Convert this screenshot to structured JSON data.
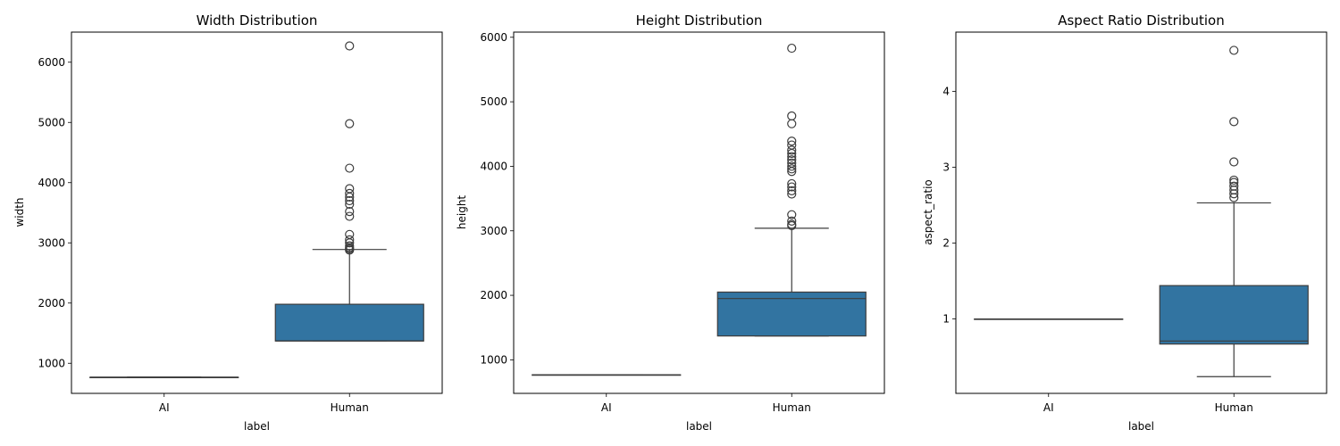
{
  "chart_data": [
    {
      "type": "box",
      "title": "Width Distribution",
      "xlabel": "label",
      "ylabel": "width",
      "categories": [
        "AI",
        "Human"
      ],
      "ylim": [
        500,
        6500
      ],
      "yticks": [
        1000,
        2000,
        3000,
        4000,
        5000,
        6000
      ],
      "box_color": "#3274a1",
      "boxes": [
        {
          "category": "AI",
          "min": 768,
          "q1": 768,
          "median": 768,
          "q3": 768,
          "max": 768,
          "outliers": []
        },
        {
          "category": "Human",
          "min": 1370,
          "q1": 1370,
          "median": 1370,
          "q3": 1980,
          "max": 2890,
          "outliers": [
            2880,
            2900,
            2920,
            2950,
            3000,
            3050,
            3140,
            3440,
            3520,
            3640,
            3700,
            3760,
            3820,
            3900,
            4240,
            4980,
            6270
          ]
        }
      ]
    },
    {
      "type": "box",
      "title": "Height Distribution",
      "xlabel": "label",
      "ylabel": "height",
      "categories": [
        "AI",
        "Human"
      ],
      "ylim": [
        480,
        6080
      ],
      "yticks": [
        1000,
        2000,
        3000,
        4000,
        5000,
        6000
      ],
      "box_color": "#3274a1",
      "boxes": [
        {
          "category": "AI",
          "min": 768,
          "q1": 768,
          "median": 768,
          "q3": 768,
          "max": 768,
          "outliers": []
        },
        {
          "category": "Human",
          "min": 1370,
          "q1": 1370,
          "median": 1950,
          "q3": 2050,
          "max": 3040,
          "outliers": [
            3080,
            3100,
            3150,
            3250,
            3570,
            3620,
            3680,
            3730,
            3920,
            3960,
            4000,
            4050,
            4100,
            4150,
            4200,
            4250,
            4330,
            4390,
            4660,
            4780,
            5830
          ]
        }
      ]
    },
    {
      "type": "box",
      "title": "Aspect Ratio Distribution",
      "xlabel": "label",
      "ylabel": "aspect_ratio",
      "categories": [
        "AI",
        "Human"
      ],
      "ylim": [
        0.02,
        4.78
      ],
      "yticks": [
        1,
        2,
        3,
        4
      ],
      "box_color": "#3274a1",
      "boxes": [
        {
          "category": "AI",
          "min": 1.0,
          "q1": 1.0,
          "median": 1.0,
          "q3": 1.0,
          "max": 1.0,
          "outliers": []
        },
        {
          "category": "Human",
          "min": 0.24,
          "q1": 0.67,
          "median": 0.71,
          "q3": 1.44,
          "max": 2.53,
          "outliers": [
            2.6,
            2.65,
            2.7,
            2.75,
            2.8,
            2.83,
            3.07,
            3.6,
            4.54
          ]
        }
      ]
    }
  ]
}
